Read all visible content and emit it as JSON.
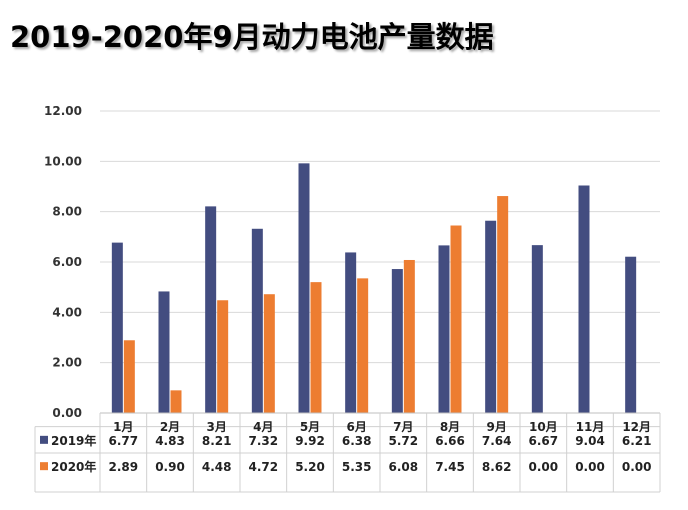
{
  "title": "2019-2020年9月动力电池产量数据",
  "chart_data": {
    "type": "bar",
    "categories": [
      "1月",
      "2月",
      "3月",
      "4月",
      "5月",
      "6月",
      "7月",
      "8月",
      "9月",
      "10月",
      "11月",
      "12月"
    ],
    "series": [
      {
        "name": "2019年",
        "color": "#434d80",
        "values": [
          6.77,
          4.83,
          8.21,
          7.32,
          9.92,
          6.38,
          5.72,
          6.66,
          7.64,
          6.67,
          9.04,
          6.21
        ]
      },
      {
        "name": "2020年",
        "color": "#ed7d31",
        "values": [
          2.89,
          0.9,
          4.48,
          4.72,
          5.2,
          5.35,
          6.08,
          7.45,
          8.62,
          0.0,
          0.0,
          0.0
        ]
      }
    ],
    "table_values": [
      [
        "6.77",
        "4.83",
        "8.21",
        "7.32",
        "9.92",
        "6.38",
        "5.72",
        "6.66",
        "7.64",
        "6.67",
        "9.04",
        "6.21"
      ],
      [
        "2.89",
        "0.90",
        "4.48",
        "4.72",
        "5.20",
        "5.35",
        "6.08",
        "7.45",
        "8.62",
        "0.00",
        "0.00",
        "0.00"
      ]
    ],
    "ylim": [
      0,
      12
    ],
    "yticks": [
      "0.00",
      "2.00",
      "4.00",
      "6.00",
      "8.00",
      "10.00",
      "12.00"
    ],
    "grid": true,
    "legend": "data-table"
  }
}
